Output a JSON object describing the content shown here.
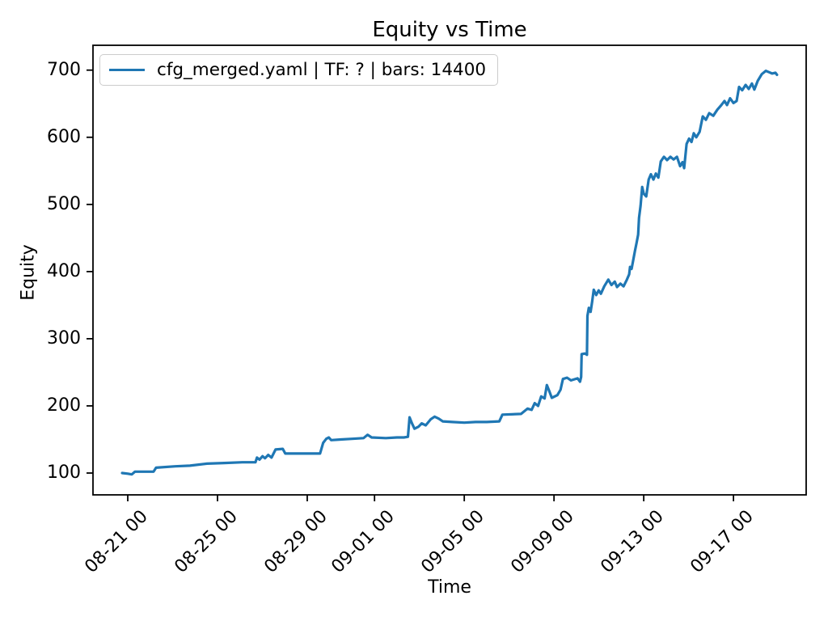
{
  "chart_data": {
    "type": "line",
    "title": "Equity vs Time",
    "xlabel": "Time",
    "ylabel": "Equity",
    "grid": false,
    "legend": {
      "position": "upper left",
      "entries": [
        {
          "label": "cfg_merged.yaml | TF: ? | bars: 14400",
          "color": "#1f77b4"
        }
      ]
    },
    "x_unit": "days since 08-21 00:00",
    "x_range": [
      -1.55,
      30.24
    ],
    "y_range": [
      67.5,
      737
    ],
    "x_ticks": [
      {
        "x": 0,
        "label": "08-21 00"
      },
      {
        "x": 4,
        "label": "08-25 00"
      },
      {
        "x": 8,
        "label": "08-29 00"
      },
      {
        "x": 11,
        "label": "09-01 00"
      },
      {
        "x": 15,
        "label": "09-05 00"
      },
      {
        "x": 19,
        "label": "09-09 00"
      },
      {
        "x": 23,
        "label": "09-13 00"
      },
      {
        "x": 27,
        "label": "09-17 00"
      }
    ],
    "y_ticks": [
      100,
      200,
      300,
      400,
      500,
      600,
      700
    ],
    "series": [
      {
        "name": "cfg_merged.yaml | TF: ? | bars: 14400",
        "color": "#1f77b4",
        "points": [
          [
            -0.25,
            100
          ],
          [
            0,
            99
          ],
          [
            0.18,
            98
          ],
          [
            0.32,
            102
          ],
          [
            1.15,
            102
          ],
          [
            1.26,
            108
          ],
          [
            2.12,
            110
          ],
          [
            2.77,
            111
          ],
          [
            3.53,
            114
          ],
          [
            4.3,
            115
          ],
          [
            5.11,
            116
          ],
          [
            5.69,
            116
          ],
          [
            5.76,
            123
          ],
          [
            5.87,
            120
          ],
          [
            6.01,
            125
          ],
          [
            6.12,
            122
          ],
          [
            6.26,
            127
          ],
          [
            6.41,
            123
          ],
          [
            6.59,
            135
          ],
          [
            6.91,
            136
          ],
          [
            7.02,
            129
          ],
          [
            7.5,
            129
          ],
          [
            8.0,
            129
          ],
          [
            8.57,
            129
          ],
          [
            8.71,
            145
          ],
          [
            8.85,
            151
          ],
          [
            8.96,
            153
          ],
          [
            9.07,
            149
          ],
          [
            9.5,
            150
          ],
          [
            10.0,
            151
          ],
          [
            10.51,
            152
          ],
          [
            10.69,
            157
          ],
          [
            10.87,
            153
          ],
          [
            11.5,
            152
          ],
          [
            12.0,
            153
          ],
          [
            12.31,
            153
          ],
          [
            12.49,
            154
          ],
          [
            12.56,
            183
          ],
          [
            12.67,
            174
          ],
          [
            12.78,
            166
          ],
          [
            12.96,
            169
          ],
          [
            13.1,
            174
          ],
          [
            13.28,
            171
          ],
          [
            13.5,
            180
          ],
          [
            13.68,
            184
          ],
          [
            13.86,
            181
          ],
          [
            14.04,
            177
          ],
          [
            14.47,
            176
          ],
          [
            15.0,
            175
          ],
          [
            15.5,
            176
          ],
          [
            16.0,
            176
          ],
          [
            16.56,
            177
          ],
          [
            16.7,
            187
          ],
          [
            17.53,
            188
          ],
          [
            17.82,
            196
          ],
          [
            18.0,
            194
          ],
          [
            18.14,
            204
          ],
          [
            18.29,
            200
          ],
          [
            18.43,
            214
          ],
          [
            18.58,
            211
          ],
          [
            18.68,
            231
          ],
          [
            18.79,
            222
          ],
          [
            18.9,
            212
          ],
          [
            19.15,
            216
          ],
          [
            19.29,
            224
          ],
          [
            19.4,
            240
          ],
          [
            19.58,
            242
          ],
          [
            19.76,
            238
          ],
          [
            20.05,
            241
          ],
          [
            20.16,
            236
          ],
          [
            20.21,
            243
          ],
          [
            20.23,
            277
          ],
          [
            20.38,
            278
          ],
          [
            20.47,
            276
          ],
          [
            20.49,
            334
          ],
          [
            20.55,
            346
          ],
          [
            20.63,
            340
          ],
          [
            20.7,
            355
          ],
          [
            20.77,
            373
          ],
          [
            20.88,
            365
          ],
          [
            20.99,
            372
          ],
          [
            21.09,
            367
          ],
          [
            21.24,
            378
          ],
          [
            21.42,
            388
          ],
          [
            21.56,
            380
          ],
          [
            21.71,
            385
          ],
          [
            21.81,
            377
          ],
          [
            21.96,
            382
          ],
          [
            22.1,
            378
          ],
          [
            22.25,
            388
          ],
          [
            22.35,
            396
          ],
          [
            22.39,
            407
          ],
          [
            22.46,
            404
          ],
          [
            22.53,
            417
          ],
          [
            22.61,
            431
          ],
          [
            22.68,
            443
          ],
          [
            22.75,
            455
          ],
          [
            22.79,
            480
          ],
          [
            22.86,
            498
          ],
          [
            22.93,
            526
          ],
          [
            23.0,
            516
          ],
          [
            23.11,
            512
          ],
          [
            23.22,
            537
          ],
          [
            23.32,
            545
          ],
          [
            23.43,
            537
          ],
          [
            23.54,
            546
          ],
          [
            23.65,
            540
          ],
          [
            23.76,
            564
          ],
          [
            23.9,
            571
          ],
          [
            24.04,
            566
          ],
          [
            24.19,
            571
          ],
          [
            24.33,
            567
          ],
          [
            24.48,
            571
          ],
          [
            24.62,
            557
          ],
          [
            24.73,
            563
          ],
          [
            24.8,
            554
          ],
          [
            24.91,
            590
          ],
          [
            25.02,
            598
          ],
          [
            25.13,
            593
          ],
          [
            25.23,
            606
          ],
          [
            25.34,
            600
          ],
          [
            25.49,
            608
          ],
          [
            25.63,
            631
          ],
          [
            25.77,
            626
          ],
          [
            25.92,
            636
          ],
          [
            26.1,
            632
          ],
          [
            26.28,
            641
          ],
          [
            26.46,
            648
          ],
          [
            26.6,
            654
          ],
          [
            26.71,
            648
          ],
          [
            26.85,
            658
          ],
          [
            27.0,
            651
          ],
          [
            27.14,
            654
          ],
          [
            27.25,
            675
          ],
          [
            27.39,
            670
          ],
          [
            27.54,
            678
          ],
          [
            27.68,
            672
          ],
          [
            27.82,
            680
          ],
          [
            27.93,
            671
          ],
          [
            28.08,
            684
          ],
          [
            28.26,
            694
          ],
          [
            28.44,
            699
          ],
          [
            28.58,
            697
          ],
          [
            28.72,
            695
          ],
          [
            28.87,
            696
          ],
          [
            28.94,
            693
          ]
        ]
      }
    ]
  },
  "colors": {
    "line": "#1f77b4",
    "background": "#ffffff",
    "legend_border": "#cccccc",
    "axis": "#000000"
  }
}
